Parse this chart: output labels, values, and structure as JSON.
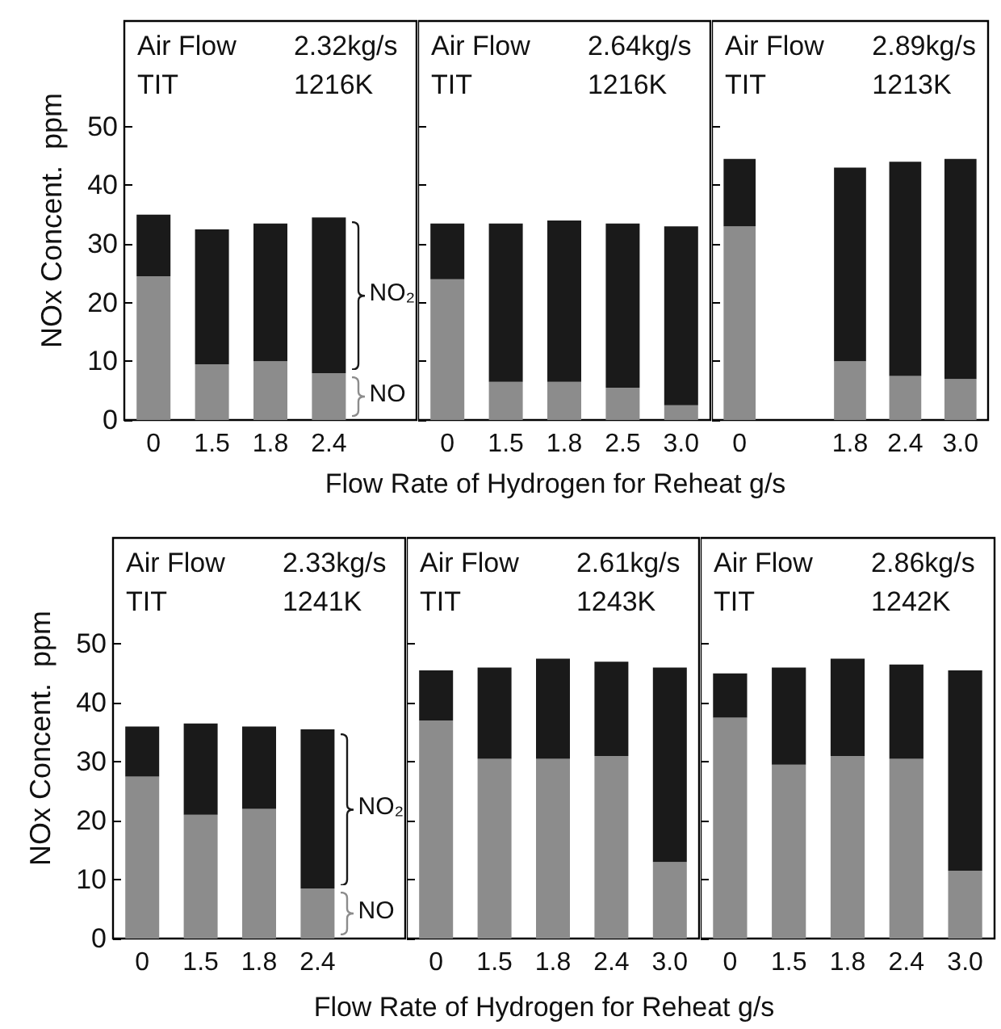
{
  "chart_data": [
    {
      "type": "bar",
      "stacked": true,
      "ylabel": "NOx Concent.  ppm",
      "categories": [
        "0",
        "1.5",
        "1.8",
        "2.4"
      ],
      "ylim": [
        0,
        68
      ],
      "yticks": [
        0,
        10,
        20,
        30,
        40,
        50
      ],
      "annotations": [
        "Air Flow",
        "2.32kg/s",
        "TIT",
        "1216K"
      ],
      "series": [
        {
          "name": "NO",
          "color": "#8c8c8c",
          "values": [
            24.5,
            9.5,
            10,
            8
          ]
        },
        {
          "name": "NO₂",
          "color": "#1a1a1a",
          "values": [
            10.5,
            23,
            23.5,
            26.5
          ]
        }
      ]
    },
    {
      "type": "bar",
      "stacked": true,
      "xlabel": "Flow Rate of Hydrogen for Reheat   g/s",
      "tick_labels": "x",
      "categories": [
        "0",
        "1.5",
        "1.8",
        "2.5",
        "3.0"
      ],
      "ylim": [
        0,
        68
      ],
      "yticks": [
        0,
        10,
        20,
        30,
        40,
        50
      ],
      "annotations": [
        "Air Flow",
        "2.64kg/s",
        "TIT",
        "1216K"
      ],
      "series": [
        {
          "color": "#8c8c8c",
          "values": [
            24,
            6.5,
            6.5,
            5.5,
            2.5
          ]
        },
        {
          "color": "#1a1a1a",
          "values": [
            9.5,
            27,
            27.5,
            28,
            30.5
          ]
        }
      ]
    },
    {
      "type": "bar",
      "stacked": true,
      "tick_labels": "x",
      "categories": [
        "0",
        null,
        "1.8",
        "2.4",
        "3.0"
      ],
      "ylim": [
        0,
        68
      ],
      "yticks": [
        0,
        10,
        20,
        30,
        40,
        50
      ],
      "annotations": [
        "Air Flow",
        "2.89kg/s",
        "TIT",
        "1213K"
      ],
      "series": [
        {
          "color": "#8c8c8c",
          "values": [
            33,
            null,
            10,
            7.5,
            7
          ]
        },
        {
          "color": "#1a1a1a",
          "values": [
            11.5,
            null,
            33,
            36.5,
            37.5
          ]
        }
      ]
    },
    {
      "type": "bar",
      "stacked": true,
      "ylabel": "NOx Concent.  ppm",
      "categories": [
        "0",
        "1.5",
        "1.8",
        "2.4"
      ],
      "ylim": [
        0,
        68
      ],
      "yticks": [
        0,
        10,
        20,
        30,
        40,
        50
      ],
      "annotations": [
        "Air Flow",
        "2.33kg/s",
        "TIT",
        "1241K"
      ],
      "series": [
        {
          "name": "NO",
          "color": "#8c8c8c",
          "values": [
            27.5,
            21,
            22,
            8.5
          ]
        },
        {
          "name": "NO₂",
          "color": "#1a1a1a",
          "values": [
            8.5,
            15.5,
            14,
            27
          ]
        }
      ]
    },
    {
      "type": "bar",
      "stacked": true,
      "xlabel": "Flow Rate of Hydrogen for Reheat   g/s",
      "tick_labels": "x",
      "categories": [
        "0",
        "1.5",
        "1.8",
        "2.4",
        "3.0"
      ],
      "ylim": [
        0,
        68
      ],
      "yticks": [
        0,
        10,
        20,
        30,
        40,
        50
      ],
      "annotations": [
        "Air Flow",
        "2.61kg/s",
        "TIT",
        "1243K"
      ],
      "series": [
        {
          "color": "#8c8c8c",
          "values": [
            37,
            30.5,
            30.5,
            31,
            13
          ]
        },
        {
          "color": "#1a1a1a",
          "values": [
            8.5,
            15.5,
            17,
            16,
            33
          ]
        }
      ]
    },
    {
      "type": "bar",
      "stacked": true,
      "tick_labels": "x",
      "categories": [
        "0",
        "1.5",
        "1.8",
        "2.4",
        "3.0"
      ],
      "ylim": [
        0,
        68
      ],
      "yticks": [
        0,
        10,
        20,
        30,
        40,
        50
      ],
      "annotations": [
        "Air Flow",
        "2.86kg/s",
        "TIT",
        "1242K"
      ],
      "series": [
        {
          "color": "#8c8c8c",
          "values": [
            37.5,
            29.5,
            31,
            30.5,
            11.5
          ]
        },
        {
          "color": "#1a1a1a",
          "values": [
            7.5,
            16.5,
            16.5,
            16,
            34
          ]
        }
      ]
    }
  ]
}
